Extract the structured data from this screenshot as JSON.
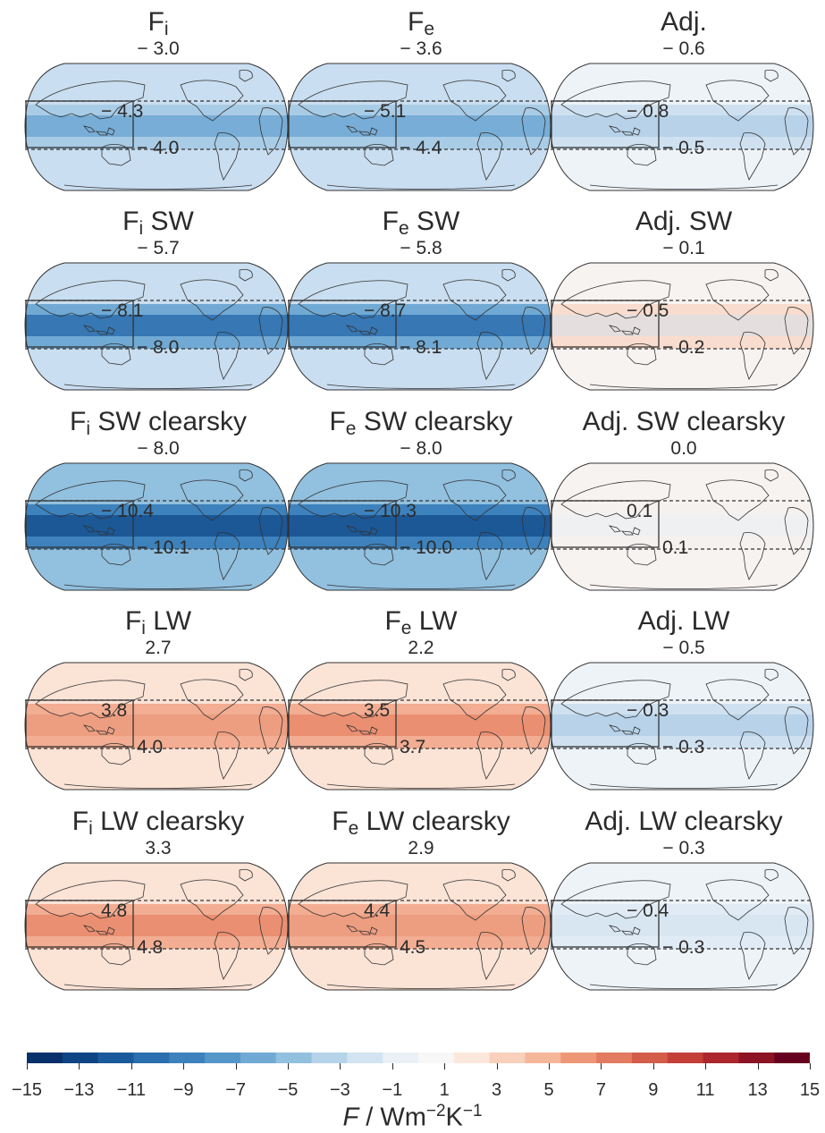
{
  "panels": [
    {
      "title_main": "F",
      "title_sub": "i",
      "title_rest": "",
      "global": "− 3.0",
      "box": "− 4.3",
      "tropics": "− 4.0",
      "tone": "blue",
      "level": 0.3
    },
    {
      "title_main": "F",
      "title_sub": "e",
      "title_rest": "",
      "global": "− 3.6",
      "box": "− 5.1",
      "tropics": "− 4.4",
      "tone": "blue",
      "level": 0.36
    },
    {
      "title_main": "Adj.",
      "title_sub": "",
      "title_rest": "",
      "global": "− 0.6",
      "box": "− 0.8",
      "tropics": "− 0.5",
      "tone": "mixed-blue",
      "level": 0.08
    },
    {
      "title_main": "F",
      "title_sub": "i",
      "title_rest": " SW",
      "global": "− 5.7",
      "box": "− 8.1",
      "tropics": "− 8.0",
      "tone": "blue",
      "level": 0.55
    },
    {
      "title_main": "F",
      "title_sub": "e",
      "title_rest": " SW",
      "global": "− 5.8",
      "box": "− 8.7",
      "tropics": "− 8.1",
      "tone": "blue",
      "level": 0.57
    },
    {
      "title_main": "Adj. SW",
      "title_sub": "",
      "title_rest": "",
      "global": "− 0.1",
      "box": "− 0.5",
      "tropics": "− 0.2",
      "tone": "mixed",
      "level": 0.05
    },
    {
      "title_main": "F",
      "title_sub": "i",
      "title_rest": " SW clearsky",
      "global": "− 8.0",
      "box": "− 10.4",
      "tropics": "− 10.1",
      "tone": "blue",
      "level": 0.7
    },
    {
      "title_main": "F",
      "title_sub": "e",
      "title_rest": " SW clearsky",
      "global": "− 8.0",
      "box": "− 10.3",
      "tropics": "− 10.0",
      "tone": "blue",
      "level": 0.7
    },
    {
      "title_main": "Adj. SW clearsky",
      "title_sub": "",
      "title_rest": "",
      "global": "0.0",
      "box": "0.1",
      "tropics": "0.1",
      "tone": "neutral",
      "level": 0.02
    },
    {
      "title_main": "F",
      "title_sub": "i",
      "title_rest": " LW",
      "global": "2.7",
      "box": "3.8",
      "tropics": "4.0",
      "tone": "red",
      "level": 0.3
    },
    {
      "title_main": "F",
      "title_sub": "e",
      "title_rest": " LW",
      "global": "2.2",
      "box": "3.5",
      "tropics": "3.7",
      "tone": "red",
      "level": 0.32
    },
    {
      "title_main": "Adj. LW",
      "title_sub": "",
      "title_rest": "",
      "global": "− 0.5",
      "box": "− 0.3",
      "tropics": "− 0.3",
      "tone": "mixed-blue",
      "level": 0.1
    },
    {
      "title_main": "F",
      "title_sub": "i",
      "title_rest": " LW clearsky",
      "global": "3.3",
      "box": "4.8",
      "tropics": "4.8",
      "tone": "red",
      "level": 0.33
    },
    {
      "title_main": "F",
      "title_sub": "e",
      "title_rest": " LW clearsky",
      "global": "2.9",
      "box": "4.4",
      "tropics": "4.5",
      "tone": "red",
      "level": 0.31
    },
    {
      "title_main": "Adj. LW clearsky",
      "title_sub": "",
      "title_rest": "",
      "global": "− 0.3",
      "box": "− 0.4",
      "tropics": "− 0.3",
      "tone": "light-blue",
      "level": 0.05
    }
  ],
  "colorbar": {
    "ticks": [
      "−15",
      "−13",
      "−11",
      "−9",
      "−7",
      "−5",
      "−3",
      "−1",
      "1",
      "3",
      "5",
      "7",
      "9",
      "11",
      "13",
      "15"
    ],
    "label_var": "F",
    "label_unit": " / Wm",
    "label_exp1": "−2",
    "label_k": "K",
    "label_exp2": "−1",
    "colors": [
      "#08306b",
      "#0d4584",
      "#1a5a9c",
      "#2c6fae",
      "#3d82bd",
      "#5596c9",
      "#70aad4",
      "#92c0df",
      "#b5d4e9",
      "#d2e4f1",
      "#e9f1f7",
      "#f7f7f7",
      "#fbe7dc",
      "#f8d0bb",
      "#f5b699",
      "#ee9777",
      "#e27b60",
      "#d45d4a",
      "#c43f38",
      "#ad262d",
      "#8c1425",
      "#67001f"
    ]
  },
  "colors": {
    "blue_dark": "#1f5fa6",
    "red_mid": "#e37f64",
    "ocean_blue": "#9ec5e3",
    "ocean_red": "#f6c4ad"
  }
}
